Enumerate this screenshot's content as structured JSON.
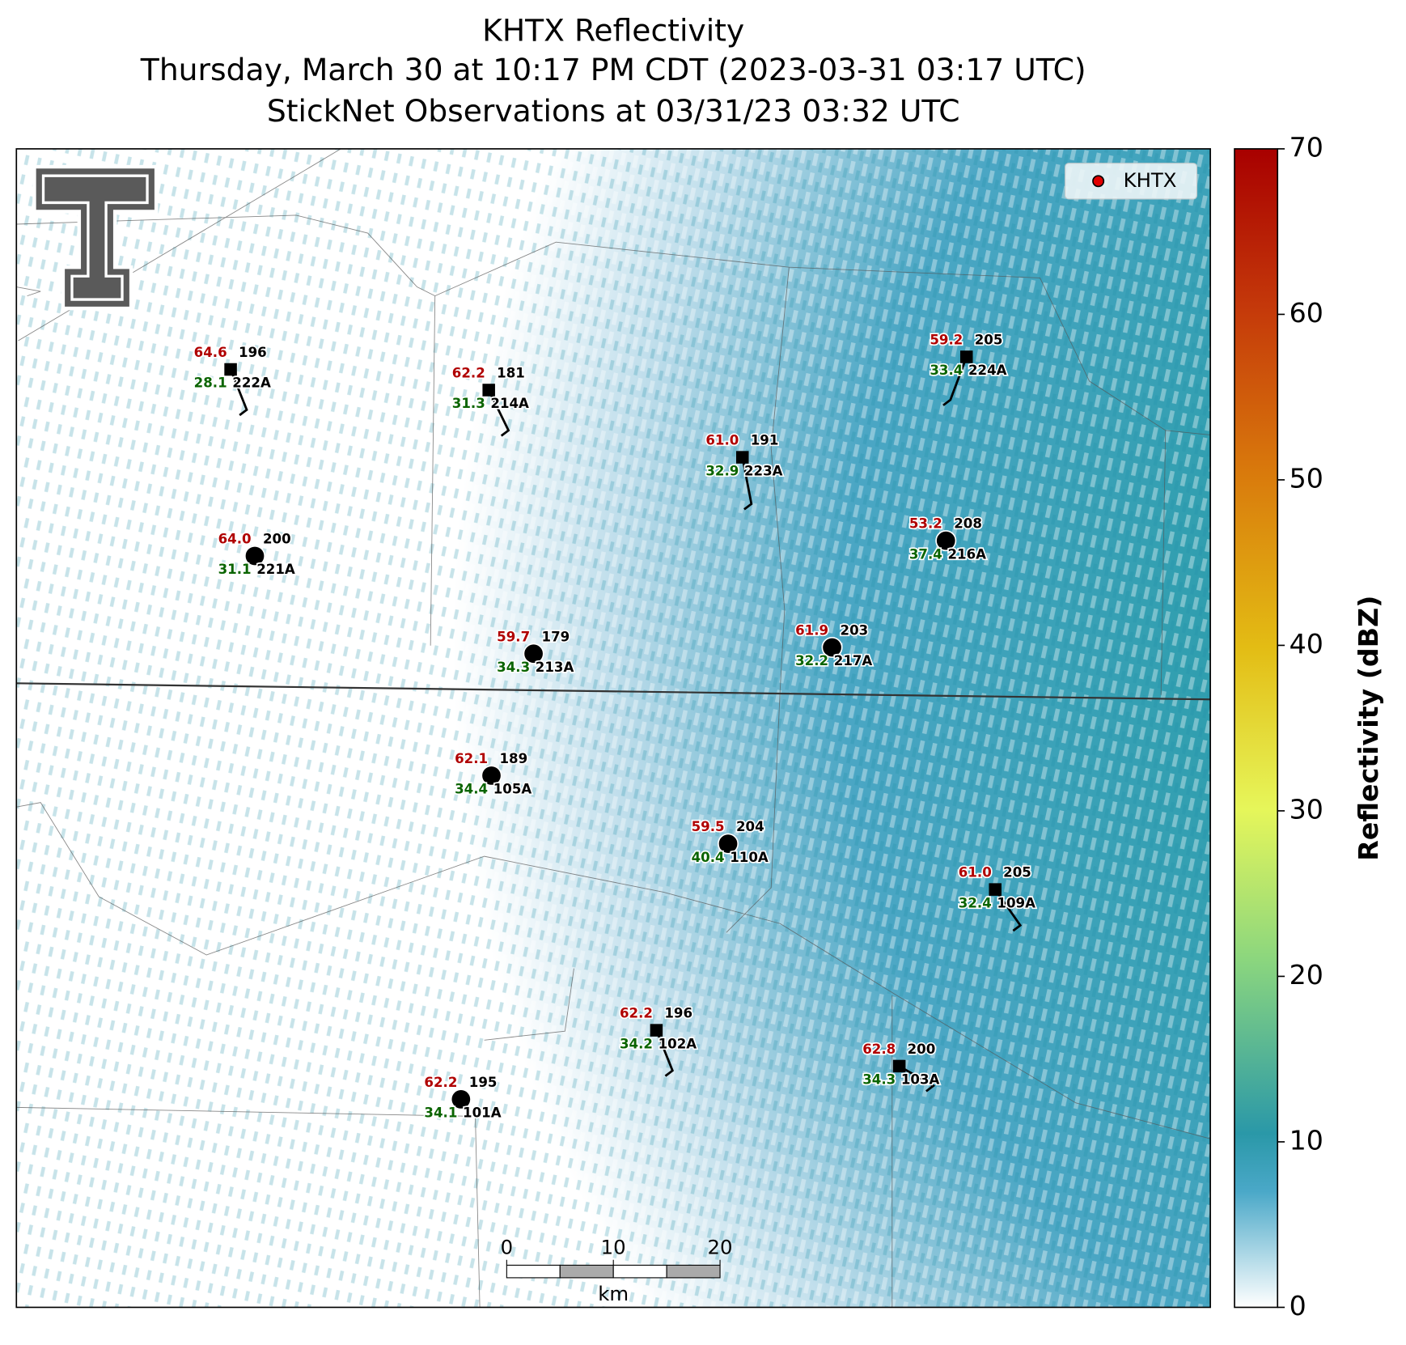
{
  "title": [
    "KHTX Reflectivity",
    "Thursday, March 30 at 10:17 PM CDT (2023-03-31 03:17 UTC)",
    "StickNet Observations at 03/31/23 03:32 UTC"
  ],
  "legend": {
    "label": "KHTX",
    "color": "#e00000",
    "corner": "upper right"
  },
  "colorbar": {
    "label": "Reflectivity (dBZ)",
    "ticks": [
      0,
      10,
      20,
      30,
      40,
      50,
      60,
      70
    ],
    "lim": [
      0,
      70
    ]
  },
  "scalebar": {
    "ticks": [
      0,
      10,
      20
    ],
    "unit": "km"
  },
  "stations": [
    {
      "id": "222A",
      "marker": "square",
      "red": "64.6",
      "black": "196",
      "green": "28.1"
    },
    {
      "id": "214A",
      "marker": "square",
      "red": "62.2",
      "black": "181",
      "green": "31.3"
    },
    {
      "id": "224A",
      "marker": "square",
      "red": "59.2",
      "black": "205",
      "green": "33.4"
    },
    {
      "id": "223A",
      "marker": "square",
      "red": "61.0",
      "black": "191",
      "green": "32.9"
    },
    {
      "id": "221A",
      "marker": "circle",
      "red": "64.0",
      "black": "200",
      "green": "31.1"
    },
    {
      "id": "216A",
      "marker": "circle",
      "red": "53.2",
      "black": "208",
      "green": "37.4"
    },
    {
      "id": "213A",
      "marker": "circle",
      "red": "59.7",
      "black": "179",
      "green": "34.3"
    },
    {
      "id": "217A",
      "marker": "circle",
      "red": "61.9",
      "black": "203",
      "green": "32.2"
    },
    {
      "id": "105A",
      "marker": "circle",
      "red": "62.1",
      "black": "189",
      "green": "34.4"
    },
    {
      "id": "110A",
      "marker": "circle",
      "red": "59.5",
      "black": "204",
      "green": "40.4"
    },
    {
      "id": "109A",
      "marker": "square",
      "red": "61.0",
      "black": "205",
      "green": "32.4"
    },
    {
      "id": "102A",
      "marker": "square",
      "red": "62.2",
      "black": "196",
      "green": "34.2"
    },
    {
      "id": "103A",
      "marker": "square",
      "red": "62.8",
      "black": "200",
      "green": "34.3"
    },
    {
      "id": "101A",
      "marker": "circle",
      "red": "62.2",
      "black": "195",
      "green": "34.1"
    }
  ]
}
